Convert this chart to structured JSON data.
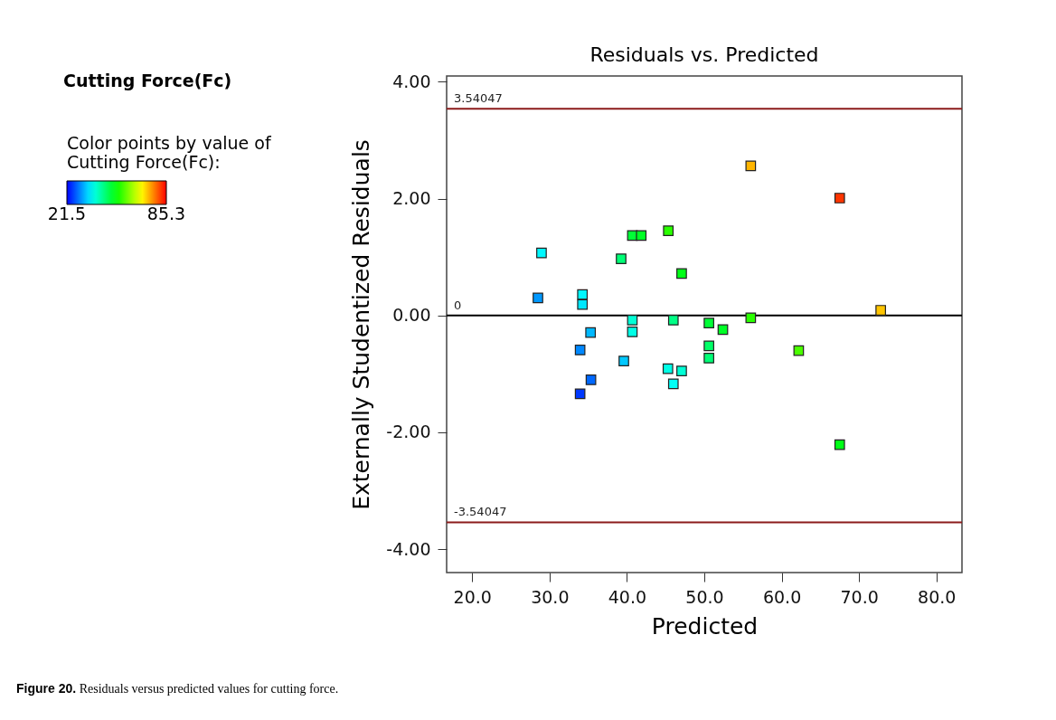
{
  "chart_data": {
    "type": "scatter",
    "title": "Residuals vs. Predicted",
    "subtitle": "Cutting Force(Fc)",
    "xlabel": "Predicted",
    "ylabel": "Externally Studentized Residuals",
    "clabel": "Color points by value of Cutting Force(Fc):",
    "annotations": [
      "Figure 20. Residuals versus predicted values for cutting force."
    ],
    "x": [
      28.96,
      28.5,
      34.25,
      34.25,
      40.7,
      41.85,
      45.35,
      39.25,
      47.07,
      40.7,
      40.7,
      46.0,
      35.3,
      33.95,
      56.0,
      67.5,
      72.8,
      56.0,
      50.6,
      52.4,
      50.6,
      62.2,
      50.6,
      67.5,
      39.6,
      35.35,
      33.95,
      45.3,
      47.07,
      46.0
    ],
    "values": [
      1.07,
      0.3,
      0.36,
      0.19,
      1.37,
      1.37,
      1.45,
      0.97,
      0.72,
      -0.08,
      -0.28,
      -0.08,
      -0.29,
      -0.59,
      2.56,
      2.01,
      0.09,
      -0.04,
      -0.13,
      -0.24,
      -0.52,
      -0.6,
      -0.73,
      -2.21,
      -0.78,
      -1.1,
      -1.34,
      -0.91,
      -0.95,
      -1.17
    ],
    "cvalues": [
      37,
      31,
      37,
      36,
      50,
      51,
      56,
      46,
      52,
      40,
      39,
      45,
      33,
      30,
      74,
      82,
      73,
      56,
      50,
      51,
      47,
      58,
      46,
      52,
      34,
      28,
      25,
      39,
      40,
      38
    ],
    "clim": [
      21.5,
      85.3
    ],
    "cticks": [
      21.5,
      85.3
    ],
    "xlim": [
      16.7,
      83.3
    ],
    "xticks": [
      {
        "value": 20,
        "label": "20.0"
      },
      {
        "value": 30,
        "label": "30.0"
      },
      {
        "value": 40,
        "label": "40.0"
      },
      {
        "value": 50,
        "label": "50.0"
      },
      {
        "value": 60,
        "label": "60.0"
      },
      {
        "value": 70,
        "label": "70.0"
      },
      {
        "value": 80,
        "label": "80.0"
      }
    ],
    "ylim": [
      -4.4,
      4.1
    ],
    "yticks": [
      {
        "value": -4,
        "label": "-4.00"
      },
      {
        "value": -2,
        "label": "-2.00"
      },
      {
        "value": 0,
        "label": "0.00"
      },
      {
        "value": 2,
        "label": "2.00"
      },
      {
        "value": 4,
        "label": "4.00"
      }
    ],
    "ref_lines": [
      {
        "axis": "y",
        "value": 3.54047,
        "label": "3.54047",
        "color": "#8b1a1a"
      },
      {
        "axis": "y",
        "value": 0,
        "label": "0",
        "color": "#000000"
      },
      {
        "axis": "y",
        "value": -3.54047,
        "label": "-3.54047",
        "color": "#8b1a1a"
      }
    ],
    "marker": "square",
    "grid": false,
    "legend": "left"
  }
}
